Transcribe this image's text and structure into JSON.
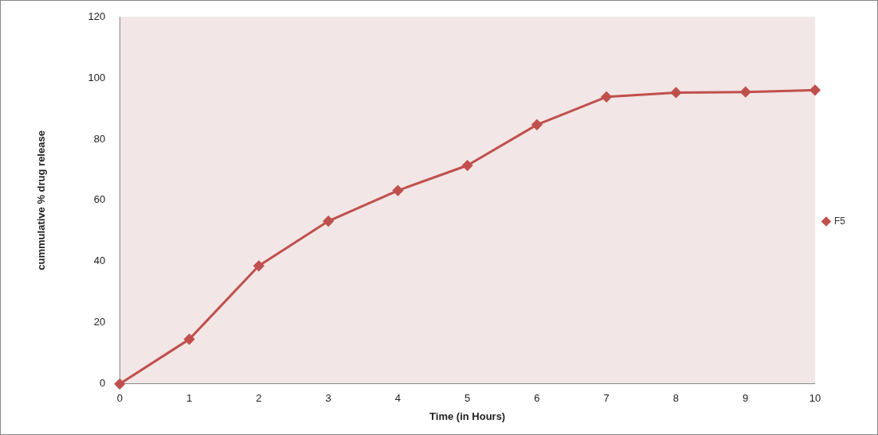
{
  "chart_data": {
    "type": "line",
    "xlabel": "Time (in Hours)",
    "ylabel": "cummulative % drug release",
    "x": [
      0,
      1,
      2,
      3,
      4,
      5,
      6,
      7,
      8,
      9,
      10
    ],
    "series": [
      {
        "name": "F5",
        "color": "#c0504d",
        "values": [
          0,
          14.6,
          38.6,
          53.2,
          63.2,
          71.4,
          84.7,
          93.8,
          95.2,
          95.4,
          96.0
        ]
      }
    ],
    "xlim": [
      0,
      10
    ],
    "xticks": [
      0,
      1,
      2,
      3,
      4,
      5,
      6,
      7,
      8,
      9,
      10
    ],
    "ylim": [
      0,
      120
    ],
    "yticks": [
      0,
      20,
      40,
      60,
      80,
      100,
      120
    ],
    "grid": false,
    "legend": "right",
    "marker": "diamond",
    "line_style": "solid"
  }
}
